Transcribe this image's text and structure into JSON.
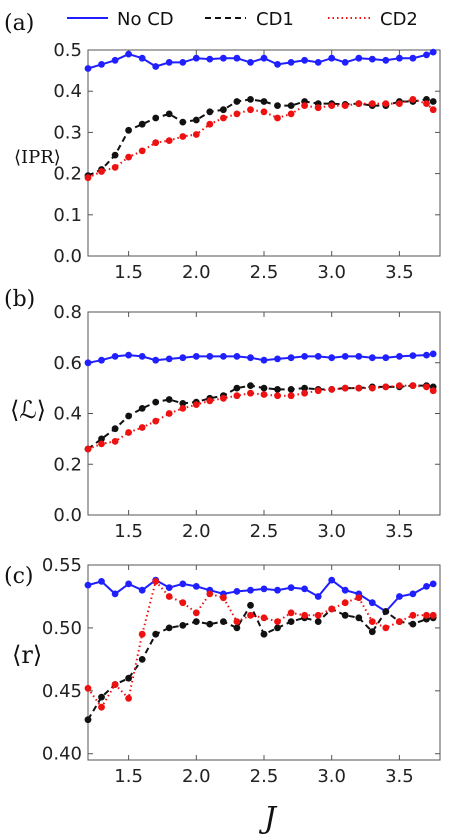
{
  "legend": [
    {
      "name": "No CD",
      "color": "#1f1fff",
      "dash": "none"
    },
    {
      "name": "CD1",
      "color": "#111111",
      "dash": "6,4"
    },
    {
      "name": "CD2",
      "color": "#ee1111",
      "dash": "1.5,3"
    }
  ],
  "xlabel": "J",
  "chart_data": [
    {
      "type": "line",
      "panel_label": "(a)",
      "ylabel": "⟨IPR⟩",
      "ylim": [
        0,
        0.5
      ],
      "yticks": [
        "0.0",
        "0.1",
        "0.2",
        "0.3",
        "0.4",
        "0.5"
      ],
      "xlim": [
        1.2,
        3.8
      ],
      "xticks": [
        "1.5",
        "2.0",
        "2.5",
        "3.0",
        "3.5"
      ],
      "x": [
        1.2,
        1.3,
        1.4,
        1.5,
        1.6,
        1.7,
        1.8,
        1.9,
        2.0,
        2.1,
        2.2,
        2.3,
        2.4,
        2.5,
        2.6,
        2.7,
        2.8,
        2.9,
        3.0,
        3.1,
        3.2,
        3.3,
        3.4,
        3.5,
        3.6,
        3.7,
        3.75
      ],
      "series": [
        {
          "name": "No CD",
          "values": [
            0.455,
            0.465,
            0.475,
            0.49,
            0.48,
            0.46,
            0.47,
            0.47,
            0.48,
            0.478,
            0.48,
            0.48,
            0.47,
            0.48,
            0.465,
            0.47,
            0.475,
            0.47,
            0.48,
            0.47,
            0.48,
            0.478,
            0.475,
            0.48,
            0.48,
            0.488,
            0.495
          ]
        },
        {
          "name": "CD1",
          "values": [
            0.195,
            0.21,
            0.245,
            0.305,
            0.32,
            0.335,
            0.345,
            0.325,
            0.33,
            0.35,
            0.355,
            0.375,
            0.38,
            0.375,
            0.365,
            0.365,
            0.375,
            0.37,
            0.37,
            0.368,
            0.37,
            0.365,
            0.365,
            0.375,
            0.375,
            0.38,
            0.375
          ]
        },
        {
          "name": "CD2",
          "values": [
            0.19,
            0.205,
            0.215,
            0.24,
            0.255,
            0.275,
            0.28,
            0.29,
            0.295,
            0.32,
            0.335,
            0.345,
            0.355,
            0.35,
            0.335,
            0.345,
            0.365,
            0.36,
            0.365,
            0.365,
            0.37,
            0.37,
            0.37,
            0.37,
            0.38,
            0.37,
            0.355
          ]
        }
      ]
    },
    {
      "type": "line",
      "panel_label": "(b)",
      "ylabel": "⟨ℒ⟩",
      "ylim": [
        0,
        0.8
      ],
      "yticks": [
        "0.0",
        "0.2",
        "0.4",
        "0.6",
        "0.8"
      ],
      "xlim": [
        1.2,
        3.8
      ],
      "xticks": [
        "1.5",
        "2.0",
        "2.5",
        "3.0",
        "3.5"
      ],
      "x": [
        1.2,
        1.3,
        1.4,
        1.5,
        1.6,
        1.7,
        1.8,
        1.9,
        2.0,
        2.1,
        2.2,
        2.3,
        2.4,
        2.5,
        2.6,
        2.7,
        2.8,
        2.9,
        3.0,
        3.1,
        3.2,
        3.3,
        3.4,
        3.5,
        3.6,
        3.7,
        3.75
      ],
      "series": [
        {
          "name": "No CD",
          "values": [
            0.6,
            0.61,
            0.625,
            0.63,
            0.625,
            0.61,
            0.615,
            0.62,
            0.625,
            0.625,
            0.625,
            0.625,
            0.62,
            0.61,
            0.615,
            0.62,
            0.625,
            0.625,
            0.62,
            0.625,
            0.625,
            0.62,
            0.62,
            0.625,
            0.628,
            0.63,
            0.635
          ]
        },
        {
          "name": "CD1",
          "values": [
            0.26,
            0.3,
            0.34,
            0.39,
            0.42,
            0.445,
            0.455,
            0.44,
            0.445,
            0.46,
            0.47,
            0.5,
            0.51,
            0.5,
            0.495,
            0.495,
            0.5,
            0.495,
            0.495,
            0.5,
            0.5,
            0.505,
            0.505,
            0.505,
            0.51,
            0.51,
            0.505
          ]
        },
        {
          "name": "CD2",
          "values": [
            0.26,
            0.28,
            0.29,
            0.325,
            0.345,
            0.37,
            0.4,
            0.42,
            0.435,
            0.45,
            0.46,
            0.47,
            0.48,
            0.475,
            0.47,
            0.47,
            0.48,
            0.49,
            0.495,
            0.5,
            0.5,
            0.5,
            0.505,
            0.51,
            0.51,
            0.505,
            0.49
          ]
        }
      ]
    },
    {
      "type": "line",
      "panel_label": "(c)",
      "ylabel": "⟨r⟩",
      "ylim": [
        0.395,
        0.55
      ],
      "yticks": [
        "0.40",
        "0.45",
        "0.50",
        "0.55"
      ],
      "ytickvals": [
        0.4,
        0.45,
        0.5,
        0.55
      ],
      "xlim": [
        1.2,
        3.8
      ],
      "xticks": [
        "1.5",
        "2.0",
        "2.5",
        "3.0",
        "3.5"
      ],
      "x": [
        1.2,
        1.3,
        1.4,
        1.5,
        1.6,
        1.7,
        1.8,
        1.9,
        2.0,
        2.1,
        2.2,
        2.3,
        2.4,
        2.5,
        2.6,
        2.7,
        2.8,
        2.9,
        3.0,
        3.1,
        3.2,
        3.3,
        3.4,
        3.5,
        3.6,
        3.7,
        3.75
      ],
      "series": [
        {
          "name": "No CD",
          "values": [
            0.534,
            0.537,
            0.527,
            0.535,
            0.53,
            0.538,
            0.532,
            0.535,
            0.533,
            0.53,
            0.527,
            0.529,
            0.53,
            0.531,
            0.53,
            0.532,
            0.531,
            0.525,
            0.538,
            0.53,
            0.527,
            0.52,
            0.513,
            0.525,
            0.527,
            0.533,
            0.535
          ]
        },
        {
          "name": "CD1",
          "values": [
            0.427,
            0.445,
            0.455,
            0.46,
            0.475,
            0.495,
            0.5,
            0.502,
            0.505,
            0.503,
            0.505,
            0.5,
            0.518,
            0.495,
            0.5,
            0.505,
            0.508,
            0.505,
            0.515,
            0.51,
            0.508,
            0.497,
            0.513,
            0.505,
            0.503,
            0.507,
            0.508
          ]
        },
        {
          "name": "CD2",
          "values": [
            0.452,
            0.437,
            0.455,
            0.444,
            0.495,
            0.537,
            0.525,
            0.52,
            0.512,
            0.527,
            0.524,
            0.505,
            0.51,
            0.508,
            0.505,
            0.512,
            0.51,
            0.51,
            0.515,
            0.52,
            0.524,
            0.505,
            0.5,
            0.505,
            0.51,
            0.51,
            0.51
          ]
        }
      ]
    }
  ]
}
